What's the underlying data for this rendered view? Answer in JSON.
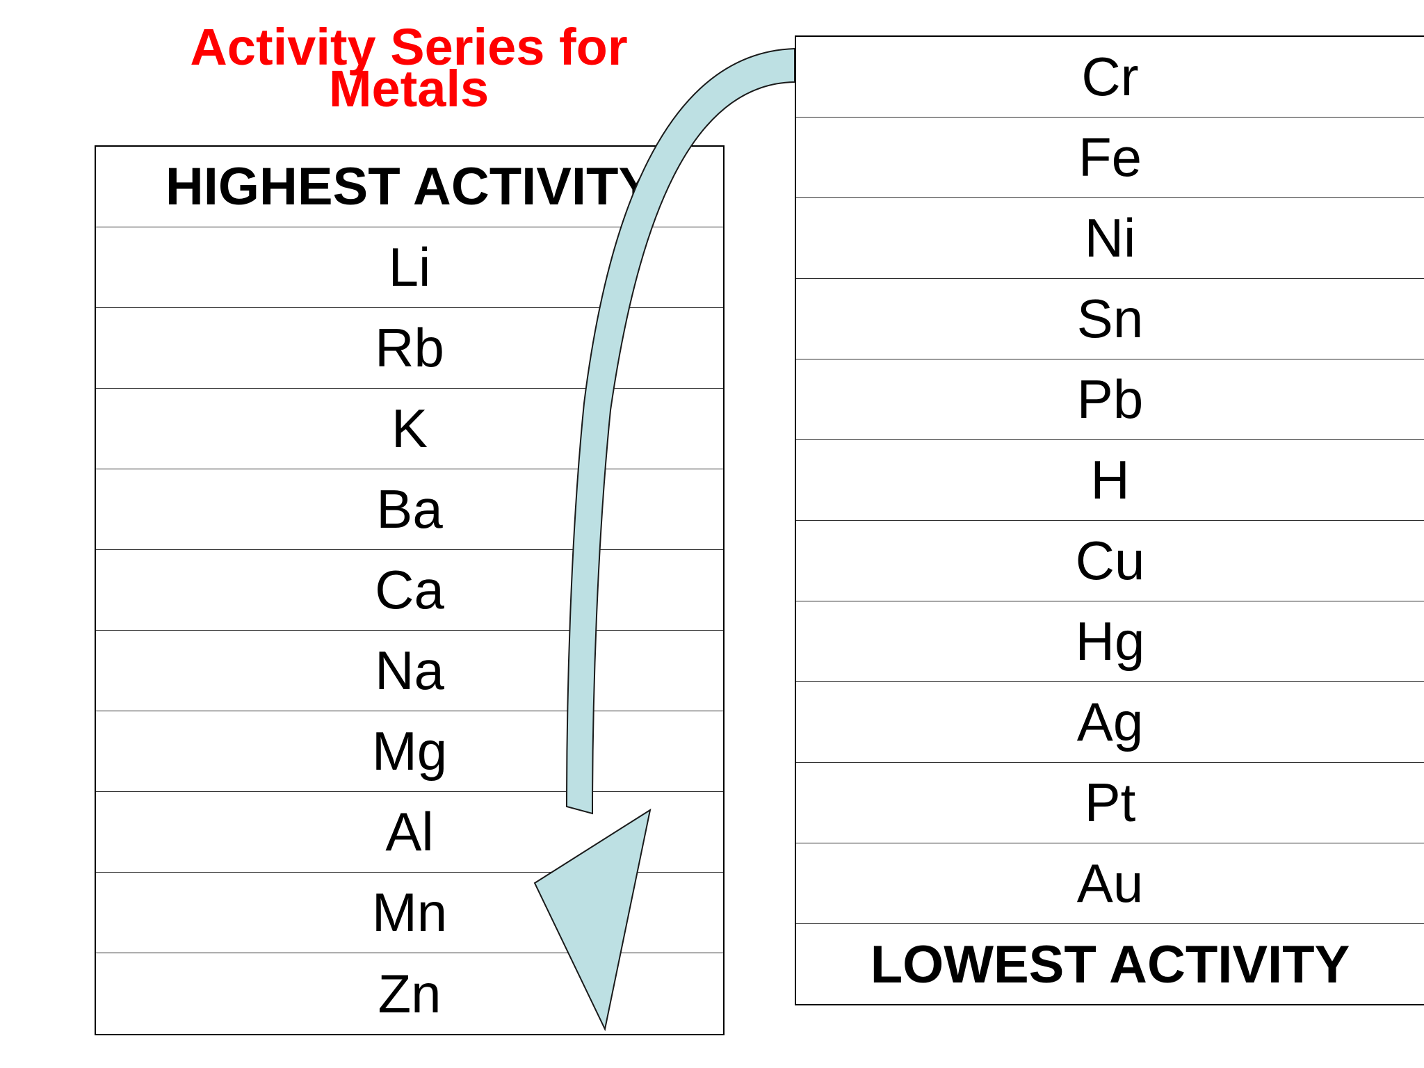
{
  "title_lines": [
    "Activity Series for",
    "Metals"
  ],
  "left_column": {
    "header": "HIGHEST ACTIVITY",
    "elements": [
      "Li",
      "Rb",
      "K",
      "Ba",
      "Ca",
      "Na",
      "Mg",
      "Al",
      "Mn",
      "Zn"
    ]
  },
  "right_column": {
    "elements": [
      "Cr",
      "Fe",
      "Ni",
      "Sn",
      "Pb",
      "H",
      "Cu",
      "Hg",
      "Ag",
      "Pt",
      "Au"
    ],
    "footer": "LOWEST ACTIVITY"
  },
  "colors": {
    "title": "#ff0000",
    "arrow_fill": "#bde0e3",
    "arrow_stroke": "#1a1a1a"
  },
  "icons": {
    "arrow": "curved-down-arrow-icon"
  }
}
